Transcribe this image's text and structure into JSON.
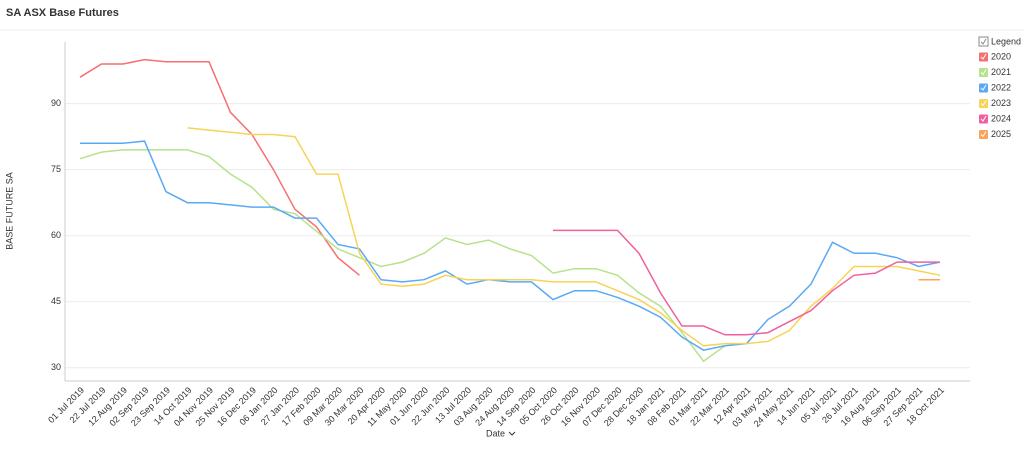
{
  "chart_data": {
    "type": "line",
    "title": "SA ASX Base Futures",
    "x_label": "Date",
    "y_label": "BASE FUTURE SA",
    "legend_title": "Legend",
    "legend_position": "right",
    "grid": true,
    "categories": [
      "01 Jul 2019",
      "22 Jul 2019",
      "12 Aug 2019",
      "02 Sep 2019",
      "23 Sep 2019",
      "14 Oct 2019",
      "04 Nov 2019",
      "25 Nov 2019",
      "16 Dec 2019",
      "06 Jan 2020",
      "27 Jan 2020",
      "17 Feb 2020",
      "09 Mar 2020",
      "30 Mar 2020",
      "20 Apr 2020",
      "11 May 2020",
      "01 Jun 2020",
      "22 Jun 2020",
      "13 Jul 2020",
      "03 Aug 2020",
      "24 Aug 2020",
      "14 Sep 2020",
      "05 Oct 2020",
      "26 Oct 2020",
      "16 Nov 2020",
      "07 Dec 2020",
      "28 Dec 2020",
      "18 Jan 2021",
      "08 Feb 2021",
      "01 Mar 2021",
      "22 Mar 2021",
      "12 Apr 2021",
      "03 May 2021",
      "24 May 2021",
      "14 Jun 2021",
      "05 Jul 2021",
      "26 Jul 2021",
      "16 Aug 2021",
      "06 Sep 2021",
      "27 Sep 2021",
      "18 Oct 2021"
    ],
    "ylim": [
      27,
      104
    ],
    "yticks": [
      30,
      45,
      60,
      75,
      90
    ],
    "series": [
      {
        "name": "2020",
        "color": "#f76f6f",
        "values": [
          96,
          99,
          99,
          100,
          99.5,
          99.5,
          99.5,
          88,
          83,
          75,
          66,
          62,
          55,
          51,
          null,
          null,
          null,
          null,
          null,
          null,
          null,
          null,
          null,
          null,
          null,
          null,
          null,
          null,
          null,
          null,
          null,
          null,
          null,
          null,
          null,
          null,
          null,
          null,
          null,
          null,
          null
        ]
      },
      {
        "name": "2021",
        "color": "#b5e38a",
        "values": [
          77.5,
          79,
          79.5,
          79.5,
          79.5,
          79.5,
          78,
          74,
          71,
          66,
          65,
          61,
          57,
          55,
          53,
          54,
          56,
          59.5,
          58,
          59,
          57,
          55.5,
          51.5,
          52.5,
          52.5,
          51,
          47,
          44,
          38,
          31.5,
          35,
          null,
          null,
          null,
          null,
          null,
          null,
          null,
          null,
          null,
          null
        ]
      },
      {
        "name": "2022",
        "color": "#5aa9f5",
        "values": [
          81,
          81,
          81,
          81.5,
          70,
          67.5,
          67.5,
          67,
          66.5,
          66.5,
          64,
          64,
          58,
          57,
          50,
          49.5,
          50,
          52,
          49,
          50,
          49.5,
          49.5,
          45.5,
          47.5,
          47.5,
          46,
          44,
          41.5,
          37,
          34,
          35,
          35.5,
          41,
          44,
          49,
          58.5,
          56,
          56,
          55,
          53,
          54
        ]
      },
      {
        "name": "2023",
        "color": "#f7d358",
        "values": [
          null,
          null,
          null,
          null,
          null,
          84.5,
          84,
          83.5,
          83,
          83,
          82.5,
          74,
          74,
          56,
          49,
          48.5,
          49,
          51,
          50,
          50,
          50,
          50,
          49.5,
          49.5,
          49.5,
          47.5,
          45.5,
          42.5,
          38.5,
          35,
          35.5,
          35.5,
          36,
          38.5,
          44,
          48,
          53,
          53,
          53,
          52,
          51
        ]
      },
      {
        "name": "2024",
        "color": "#f0609e",
        "values": [
          null,
          null,
          null,
          null,
          null,
          null,
          null,
          null,
          null,
          null,
          null,
          null,
          null,
          null,
          null,
          null,
          null,
          null,
          null,
          null,
          null,
          null,
          61.2,
          61.2,
          61.2,
          61.2,
          56,
          47,
          39.5,
          39.5,
          37.5,
          37.5,
          38,
          40.5,
          43,
          47.5,
          51,
          51.5,
          54,
          54,
          54
        ]
      },
      {
        "name": "2025",
        "color": "#f9a45a",
        "values": [
          null,
          null,
          null,
          null,
          null,
          null,
          null,
          null,
          null,
          null,
          null,
          null,
          null,
          null,
          null,
          null,
          null,
          null,
          null,
          null,
          null,
          null,
          null,
          null,
          null,
          null,
          null,
          null,
          null,
          null,
          null,
          null,
          null,
          null,
          null,
          null,
          null,
          null,
          null,
          50,
          50
        ]
      }
    ]
  }
}
